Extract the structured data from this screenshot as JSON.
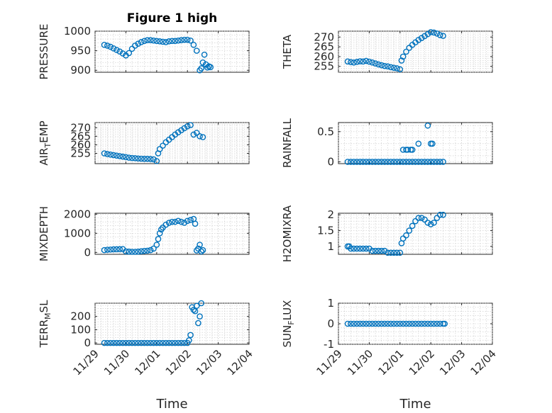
{
  "figure_title": "Figure 1 high",
  "chart_data": [
    {
      "type": "scatter",
      "title": "Figure 1 high",
      "ylabel": "PRESSURE",
      "xlabel": "",
      "ylim": [
        895,
        1000
      ],
      "yticks": [
        900,
        950,
        1000
      ],
      "xlim": [
        0,
        5
      ],
      "xticks": [
        0,
        1,
        2,
        3,
        4,
        5
      ],
      "xtick_labels": [],
      "marker_color": "#0072BD",
      "grid": true,
      "x": [
        0.3,
        0.4,
        0.5,
        0.6,
        0.7,
        0.8,
        0.9,
        1.0,
        1.1,
        1.2,
        1.3,
        1.4,
        1.5,
        1.6,
        1.7,
        1.8,
        1.9,
        2.0,
        2.1,
        2.2,
        2.3,
        2.4,
        2.5,
        2.6,
        2.7,
        2.8,
        2.9,
        3.0,
        3.1,
        3.2,
        3.3,
        3.4,
        3.45,
        3.5,
        3.55,
        3.6,
        3.65,
        3.7,
        3.75
      ],
      "y": [
        965,
        963,
        960,
        956,
        952,
        948,
        943,
        938,
        944,
        955,
        963,
        968,
        972,
        975,
        977,
        977,
        976,
        975,
        974,
        973,
        972,
        974,
        975,
        975,
        976,
        977,
        978,
        978,
        976,
        965,
        950,
        900,
        905,
        920,
        940,
        915,
        907,
        910,
        908
      ]
    },
    {
      "type": "scatter",
      "ylabel": "THETA",
      "xlabel": "",
      "ylim": [
        252,
        273
      ],
      "yticks": [
        255,
        260,
        265,
        270
      ],
      "xlim": [
        0,
        5
      ],
      "xticks": [
        0,
        1,
        2,
        3,
        4,
        5
      ],
      "xtick_labels": [],
      "marker_color": "#0072BD",
      "grid": true,
      "x": [
        0.3,
        0.4,
        0.5,
        0.6,
        0.7,
        0.8,
        0.9,
        1.0,
        1.1,
        1.2,
        1.3,
        1.4,
        1.5,
        1.6,
        1.7,
        1.8,
        1.9,
        2.0,
        2.05,
        2.1,
        2.2,
        2.3,
        2.4,
        2.5,
        2.6,
        2.7,
        2.8,
        2.9,
        3.0,
        3.1,
        3.2,
        3.3,
        3.4
      ],
      "y": [
        257.5,
        257.2,
        257.0,
        257.3,
        257.6,
        257.5,
        257.8,
        257.4,
        257.0,
        256.5,
        256.0,
        255.6,
        255.2,
        255.0,
        254.6,
        254.3,
        254.0,
        253.5,
        258.0,
        260.0,
        262.5,
        264.5,
        266.0,
        267.3,
        268.5,
        269.5,
        270.5,
        271.5,
        272.5,
        272.3,
        271.8,
        271.0,
        270.6
      ]
    },
    {
      "type": "scatter",
      "ylabel": "AIR_TEMP",
      "xlabel": "",
      "ylim": [
        249,
        273
      ],
      "yticks": [
        255,
        260,
        265,
        270
      ],
      "xlim": [
        0,
        5
      ],
      "xticks": [
        0,
        1,
        2,
        3,
        4,
        5
      ],
      "xtick_labels": [],
      "marker_color": "#0072BD",
      "grid": true,
      "x": [
        0.3,
        0.4,
        0.5,
        0.6,
        0.7,
        0.8,
        0.9,
        1.0,
        1.1,
        1.2,
        1.3,
        1.4,
        1.5,
        1.6,
        1.7,
        1.8,
        1.9,
        2.0,
        2.05,
        2.1,
        2.2,
        2.3,
        2.4,
        2.5,
        2.6,
        2.7,
        2.8,
        2.9,
        3.0,
        3.1,
        3.2,
        3.3,
        3.4,
        3.5
      ],
      "y": [
        255.0,
        254.6,
        254.3,
        254.0,
        253.7,
        253.4,
        253.1,
        252.8,
        252.5,
        252.3,
        252.2,
        252.0,
        251.9,
        251.8,
        251.8,
        251.7,
        251.5,
        250.5,
        255.0,
        257.5,
        259.5,
        261.5,
        263.0,
        264.5,
        266.0,
        267.3,
        268.5,
        269.7,
        270.8,
        271.5,
        266.0,
        267.0,
        265.0,
        264.5
      ]
    },
    {
      "type": "scatter",
      "ylabel": "RAINFALL",
      "xlabel": "",
      "ylim": [
        -0.03,
        0.65
      ],
      "yticks": [
        0,
        0.5
      ],
      "xlim": [
        0,
        5
      ],
      "xticks": [
        0,
        1,
        2,
        3,
        4,
        5
      ],
      "xtick_labels": [],
      "marker_color": "#0072BD",
      "grid": true,
      "x": [
        0.3,
        0.4,
        0.5,
        0.6,
        0.7,
        0.8,
        0.9,
        1.0,
        1.1,
        1.2,
        1.3,
        1.4,
        1.5,
        1.6,
        1.7,
        1.8,
        1.9,
        2.0,
        2.1,
        2.2,
        2.3,
        2.4,
        2.5,
        2.6,
        2.7,
        2.8,
        2.9,
        3.0,
        3.1,
        3.2,
        3.3,
        3.4,
        2.1,
        2.2,
        2.25,
        2.35,
        2.4,
        2.6,
        2.9,
        3.0,
        3.05
      ],
      "y": [
        0,
        0,
        0,
        0,
        0,
        0,
        0,
        0,
        0,
        0,
        0,
        0,
        0,
        0,
        0,
        0,
        0,
        0,
        0,
        0,
        0,
        0,
        0,
        0,
        0,
        0,
        0,
        0,
        0,
        0,
        0,
        0,
        0.2,
        0.2,
        0.2,
        0.2,
        0.2,
        0.3,
        0.6,
        0.3,
        0.3
      ]
    },
    {
      "type": "scatter",
      "ylabel": "MIXDEPTH",
      "xlabel": "",
      "ylim": [
        -100,
        2050
      ],
      "yticks": [
        0,
        1000,
        2000
      ],
      "xlim": [
        0,
        5
      ],
      "xticks": [
        0,
        1,
        2,
        3,
        4,
        5
      ],
      "xtick_labels": [],
      "marker_color": "#0072BD",
      "grid": true,
      "x": [
        0.3,
        0.4,
        0.5,
        0.6,
        0.7,
        0.8,
        0.9,
        1.0,
        1.1,
        1.2,
        1.3,
        1.4,
        1.5,
        1.6,
        1.7,
        1.8,
        1.9,
        2.0,
        2.05,
        2.1,
        2.15,
        2.2,
        2.3,
        2.4,
        2.5,
        2.6,
        2.7,
        2.8,
        2.9,
        3.0,
        3.1,
        3.2,
        3.25,
        3.3,
        3.35,
        3.4,
        3.45,
        3.5
      ],
      "y": [
        120,
        140,
        150,
        160,
        165,
        170,
        175,
        50,
        40,
        30,
        30,
        40,
        60,
        80,
        90,
        120,
        200,
        400,
        700,
        1000,
        1200,
        1300,
        1450,
        1550,
        1600,
        1600,
        1650,
        1600,
        1550,
        1650,
        1700,
        1750,
        1500,
        100,
        200,
        400,
        50,
        120
      ]
    },
    {
      "type": "scatter",
      "ylabel": "H2OMIXRA",
      "xlabel": "",
      "ylim": [
        0.75,
        2.05
      ],
      "yticks": [
        1,
        1.5,
        2
      ],
      "xlim": [
        0,
        5
      ],
      "xticks": [
        0,
        1,
        2,
        3,
        4,
        5
      ],
      "xtick_labels": [],
      "marker_color": "#0072BD",
      "grid": true,
      "x": [
        0.3,
        0.35,
        0.4,
        0.5,
        0.6,
        0.7,
        0.8,
        0.9,
        1.0,
        1.1,
        1.2,
        1.3,
        1.4,
        1.5,
        1.6,
        1.7,
        1.8,
        1.9,
        2.0,
        2.05,
        2.1,
        2.2,
        2.3,
        2.4,
        2.5,
        2.6,
        2.7,
        2.8,
        2.9,
        3.0,
        3.1,
        3.2,
        3.3,
        3.4
      ],
      "y": [
        1.0,
        1.0,
        0.93,
        0.93,
        0.93,
        0.93,
        0.93,
        0.93,
        0.93,
        0.86,
        0.86,
        0.86,
        0.86,
        0.86,
        0.8,
        0.8,
        0.8,
        0.8,
        0.8,
        1.1,
        1.25,
        1.35,
        1.5,
        1.65,
        1.8,
        1.9,
        1.9,
        1.85,
        1.75,
        1.7,
        1.75,
        1.9,
        2.0,
        2.0
      ]
    },
    {
      "type": "scatter",
      "ylabel": "TERR_MSL",
      "xlabel": "Time",
      "ylim": [
        -10,
        300
      ],
      "yticks": [
        0,
        100,
        200
      ],
      "xlim": [
        0,
        5
      ],
      "xticks": [
        0,
        1,
        2,
        3,
        4,
        5
      ],
      "xtick_labels": [
        "11/29",
        "11/30",
        "12/01",
        "12/02",
        "12/03",
        "12/04"
      ],
      "marker_color": "#0072BD",
      "grid": true,
      "x": [
        0.3,
        0.4,
        0.5,
        0.6,
        0.7,
        0.8,
        0.9,
        1.0,
        1.1,
        1.2,
        1.3,
        1.4,
        1.5,
        1.6,
        1.7,
        1.8,
        1.9,
        2.0,
        2.1,
        2.2,
        2.3,
        2.4,
        2.5,
        2.6,
        2.7,
        2.8,
        2.9,
        3.0,
        3.05,
        3.1,
        3.15,
        3.2,
        3.25,
        3.3,
        3.35,
        3.4,
        3.45
      ],
      "y": [
        0,
        0,
        0,
        0,
        0,
        0,
        0,
        0,
        0,
        0,
        0,
        0,
        0,
        0,
        0,
        0,
        0,
        0,
        0,
        0,
        0,
        0,
        0,
        0,
        0,
        0,
        0,
        0,
        20,
        60,
        270,
        250,
        240,
        280,
        150,
        200,
        300
      ]
    },
    {
      "type": "scatter",
      "ylabel": "SUN_FLUX",
      "xlabel": "Time",
      "ylim": [
        -1,
        1
      ],
      "yticks": [
        -1,
        0,
        1
      ],
      "xlim": [
        0,
        5
      ],
      "xticks": [
        0,
        1,
        2,
        3,
        4,
        5
      ],
      "xtick_labels": [
        "11/29",
        "11/30",
        "12/01",
        "12/02",
        "12/03",
        "12/04"
      ],
      "marker_color": "#0072BD",
      "grid": true,
      "x": [
        0.3,
        0.4,
        0.5,
        0.6,
        0.7,
        0.8,
        0.9,
        1.0,
        1.1,
        1.2,
        1.3,
        1.4,
        1.5,
        1.6,
        1.7,
        1.8,
        1.9,
        2.0,
        2.1,
        2.2,
        2.3,
        2.4,
        2.5,
        2.6,
        2.7,
        2.8,
        2.9,
        3.0,
        3.1,
        3.2,
        3.3,
        3.4,
        3.45
      ],
      "y": [
        0,
        0,
        0,
        0,
        0,
        0,
        0,
        0,
        0,
        0,
        0,
        0,
        0,
        0,
        0,
        0,
        0,
        0,
        0,
        0,
        0,
        0,
        0,
        0,
        0,
        0,
        0,
        0,
        0,
        0,
        0,
        0,
        0
      ]
    }
  ]
}
